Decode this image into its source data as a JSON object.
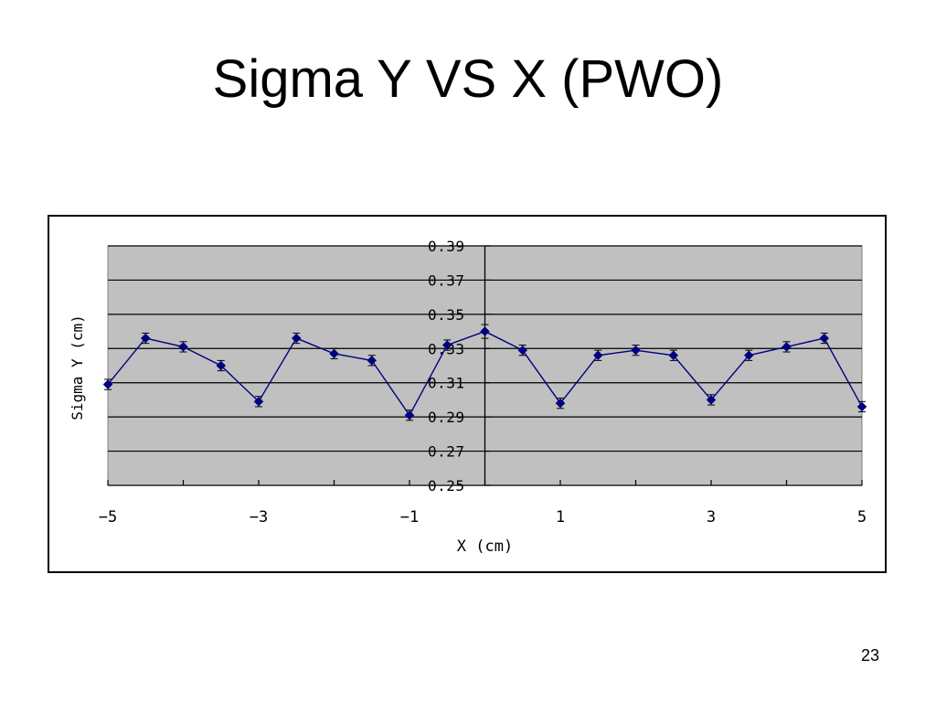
{
  "slide": {
    "title": "Sigma Y VS X (PWO)",
    "page_number": "23"
  },
  "colors": {
    "plot_background": "#c0c0c0",
    "series_line": "#000080",
    "gridline": "#000000",
    "frame": "#000000"
  },
  "chart_data": {
    "type": "line",
    "title": "",
    "xlabel": "X (cm)",
    "ylabel": "Sigma Y (cm)",
    "xlim": [
      -5,
      5
    ],
    "ylim": [
      0.25,
      0.39
    ],
    "x_ticks": [
      -5,
      -3,
      -1,
      1,
      3,
      5
    ],
    "x_tick_labels": [
      "−5",
      "−3",
      "−1",
      "1",
      "3",
      "5"
    ],
    "y_ticks": [
      0.25,
      0.27,
      0.29,
      0.31,
      0.33,
      0.35,
      0.37,
      0.39
    ],
    "y_tick_labels": [
      "0.25",
      "0.27",
      "0.29",
      "0.31",
      "0.33",
      "0.35",
      "0.37",
      "0.39"
    ],
    "grid": true,
    "marker": "diamond",
    "error_bars": true,
    "series": [
      {
        "x": [
          -5,
          -4.5,
          -4,
          -3.5,
          -3,
          -2.5,
          -2,
          -1.5,
          -1,
          -0.5,
          0,
          0.5,
          1,
          1.5,
          2,
          2.5,
          3,
          3.5,
          4,
          4.5,
          5
        ],
        "y": [
          0.309,
          0.336,
          0.331,
          0.32,
          0.299,
          0.336,
          0.327,
          0.323,
          0.291,
          0.332,
          0.34,
          0.329,
          0.298,
          0.326,
          0.329,
          0.326,
          0.3,
          0.326,
          0.331,
          0.336,
          0.296
        ],
        "err": [
          0.003,
          0.003,
          0.003,
          0.003,
          0.003,
          0.003,
          0.003,
          0.003,
          0.003,
          0.003,
          0.004,
          0.003,
          0.003,
          0.003,
          0.003,
          0.003,
          0.003,
          0.003,
          0.003,
          0.003,
          0.003
        ]
      }
    ]
  }
}
